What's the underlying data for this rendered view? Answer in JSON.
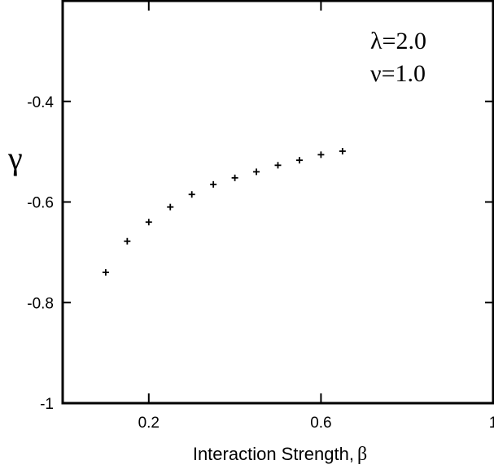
{
  "chart_data": {
    "type": "scatter",
    "xlabel": "Interaction Strength,",
    "xlabel_symbol": "β",
    "ylabel": "γ",
    "xlim": [
      0,
      1
    ],
    "ylim": [
      -1,
      -0.2
    ],
    "x_ticks": [
      0.2,
      0.6,
      1
    ],
    "x_tick_labels": [
      "0.2",
      "0.6",
      "1"
    ],
    "y_ticks": [
      -1,
      -0.8,
      -0.6,
      -0.4
    ],
    "y_tick_labels": [
      "-1",
      "-0.8",
      "-0.6",
      "-0.4"
    ],
    "annotations": [
      "λ=2.0",
      "ν=1.0"
    ],
    "marker": "+",
    "grid": false,
    "series": [
      {
        "x": [
          0.1,
          0.15,
          0.2,
          0.25,
          0.3,
          0.35,
          0.4,
          0.45,
          0.5,
          0.55,
          0.6,
          0.65
        ],
        "y": [
          -0.74,
          -0.678,
          -0.64,
          -0.61,
          -0.585,
          -0.565,
          -0.552,
          -0.54,
          -0.527,
          -0.517,
          -0.506,
          -0.499
        ]
      }
    ]
  }
}
